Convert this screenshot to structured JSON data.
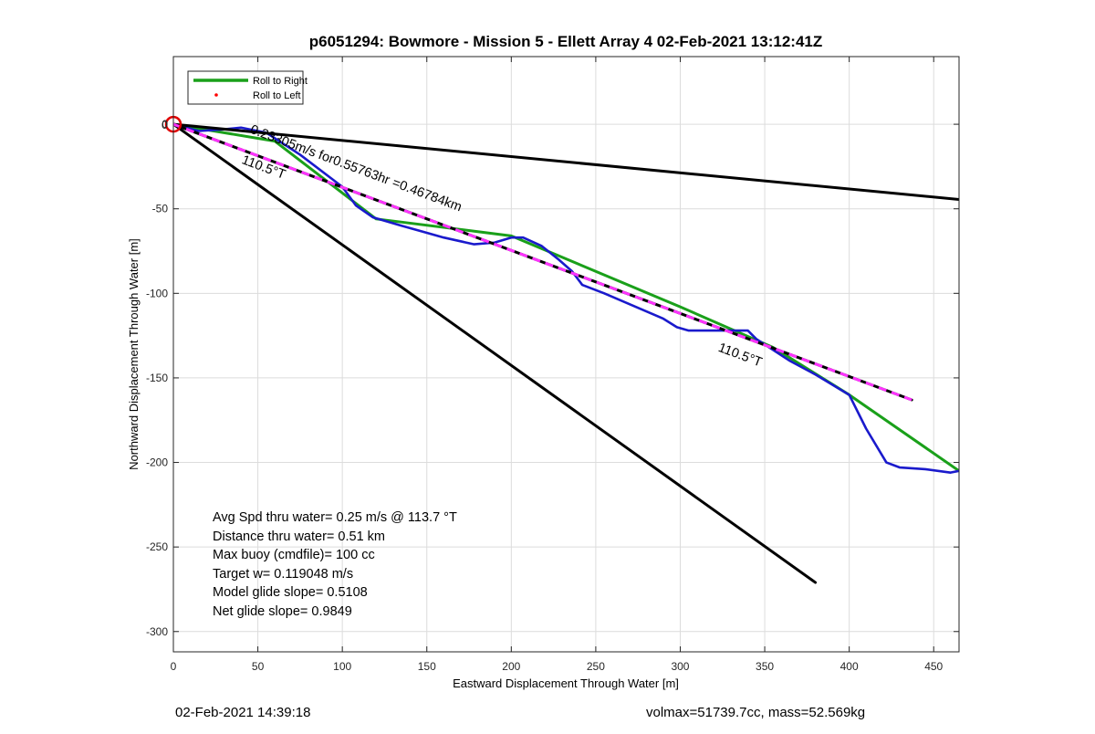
{
  "chart_data": {
    "type": "line",
    "title": "p6051294: Bowmore - Mission 5 - Ellett Array 4 02-Feb-2021 13:12:41Z",
    "xlabel": "Eastward Displacement Through Water [m]",
    "ylabel": "Northward Displacement Through Water [m]",
    "xlim": [
      0,
      465
    ],
    "ylim": [
      -312,
      40
    ],
    "xticks": [
      0,
      50,
      100,
      150,
      200,
      250,
      300,
      350,
      400,
      450
    ],
    "yticks": [
      0,
      -50,
      -100,
      -150,
      -200,
      -250,
      -300
    ],
    "xtick_labels": [
      "0",
      "50",
      "100",
      "150",
      "200",
      "250",
      "300",
      "350",
      "400",
      "450"
    ],
    "ytick_labels": [
      "0",
      "-50",
      "-100",
      "-150",
      "-200",
      "-250",
      "-300"
    ],
    "grid": true,
    "legend_position": "top-left",
    "legend": [
      {
        "label": "Roll to Right",
        "color": "#1aa01a",
        "style": "line"
      },
      {
        "label": "Roll to Left",
        "color": "#ff0000",
        "style": "dot"
      }
    ],
    "series": [
      {
        "name": "Roll to Right",
        "color": "#1aa01a",
        "x": [
          0,
          60,
          120,
          200,
          300,
          355,
          400,
          465
        ],
        "y": [
          0,
          -10,
          -56,
          -66,
          -108,
          -132,
          -160,
          -205
        ]
      },
      {
        "color": "#1a1acc",
        "x": [
          0,
          15,
          30,
          40,
          55,
          75,
          100,
          108,
          118,
          135,
          160,
          178,
          190,
          200,
          207,
          218,
          228,
          236,
          242,
          255,
          290,
          298,
          305,
          320,
          340,
          345,
          365,
          380,
          400,
          410,
          422,
          430,
          445,
          460,
          465
        ],
        "y": [
          0,
          -4,
          -3,
          -2,
          -5,
          -18,
          -37,
          -48,
          -55,
          -60,
          -67,
          -71,
          -70,
          -67,
          -67,
          -72,
          -80,
          -87,
          -95,
          -100,
          -115,
          -120,
          -122,
          -122,
          -122,
          -127,
          -140,
          -148,
          -160,
          -180,
          -200,
          -203,
          -204,
          -206,
          -205
        ]
      },
      {
        "color": "#000000",
        "x": [
          0,
          465
        ],
        "y": [
          0,
          -44.5
        ]
      },
      {
        "color": "#000000",
        "x": [
          0,
          380
        ],
        "y": [
          0,
          -271
        ]
      },
      {
        "color": "#000000",
        "dashed_color": "#ff33ff",
        "x": [
          0,
          437
        ],
        "y": [
          0,
          -163
        ]
      }
    ],
    "marker": {
      "x": 0,
      "y": 0,
      "color": "#e00000"
    },
    "annotations": [
      {
        "text": "0.23305m/s for0.55763hr =0.46784km",
        "x": 45,
        "y": -5,
        "angle_deg": 20.5
      },
      {
        "text": "110.5°T",
        "x": 40,
        "y": -23,
        "angle_deg": 20.5
      },
      {
        "text": "110.5°T",
        "x": 322,
        "y": -134,
        "angle_deg": 20.5
      }
    ],
    "info_lines": [
      "Avg Spd thru water=  0.25 m/s @ 113.7 °T",
      "Distance thru water=  0.51 km",
      "Max buoy (cmdfile)= 100 cc",
      "Target w= 0.119048 m/s",
      "Model glide slope= 0.5108",
      "Net glide slope= 0.9849"
    ]
  },
  "footer": {
    "timestamp": "02-Feb-2021 14:39:18",
    "summary": "volmax=51739.7cc, mass=52.569kg"
  }
}
